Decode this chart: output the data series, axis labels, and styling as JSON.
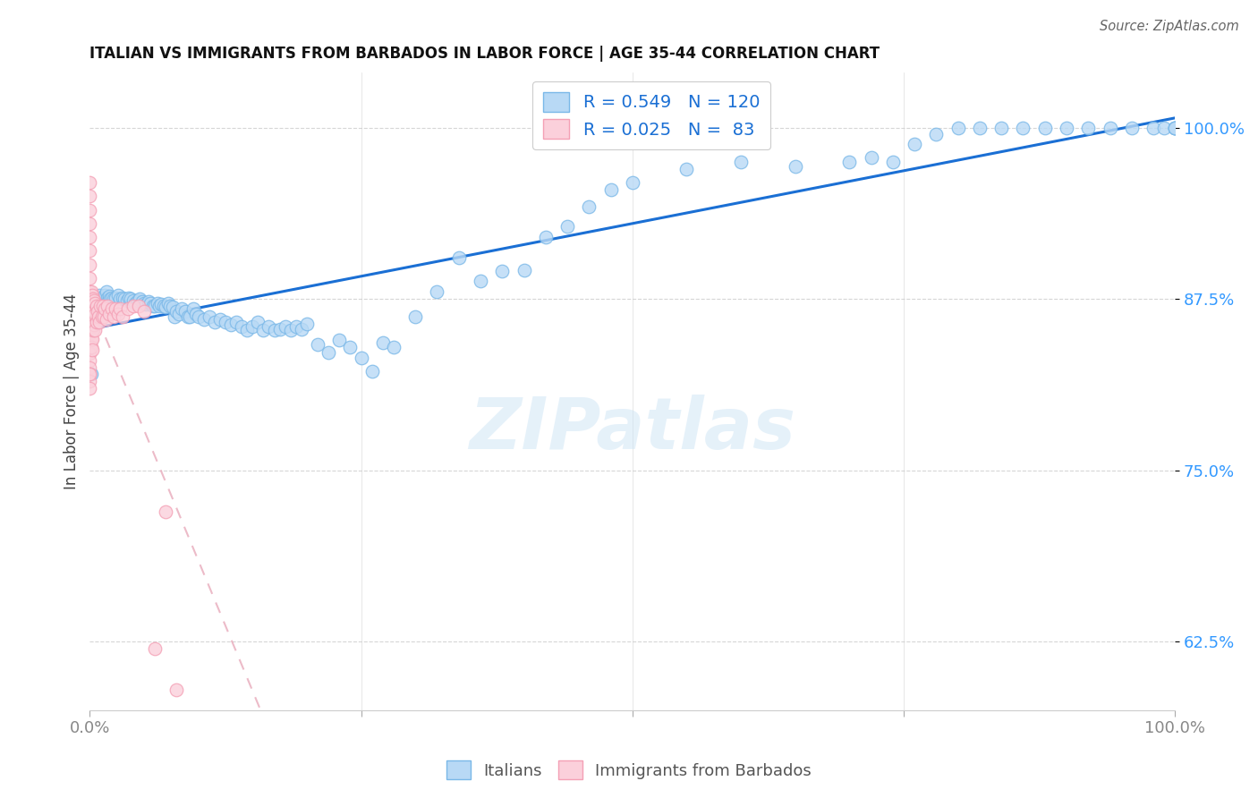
{
  "title": "ITALIAN VS IMMIGRANTS FROM BARBADOS IN LABOR FORCE | AGE 35-44 CORRELATION CHART",
  "source": "Source: ZipAtlas.com",
  "ylabel": "In Labor Force | Age 35-44",
  "xlim": [
    0.0,
    1.0
  ],
  "ylim": [
    0.575,
    1.04
  ],
  "yticks": [
    0.625,
    0.75,
    0.875,
    1.0
  ],
  "ytick_labels": [
    "62.5%",
    "75.0%",
    "87.5%",
    "100.0%"
  ],
  "xtick_labels": [
    "0.0%",
    "100.0%"
  ],
  "xticks": [
    0.0,
    1.0
  ],
  "background_color": "#ffffff",
  "grid_color": "#cccccc",
  "blue_edge": "#7ab8e8",
  "blue_fill": "#b8d9f5",
  "pink_edge": "#f4a0b5",
  "pink_fill": "#fbd0db",
  "line_blue": "#1a6fd4",
  "line_pink": "#e8aabb",
  "R_blue": 0.549,
  "N_blue": 120,
  "R_pink": 0.025,
  "N_pink": 83,
  "watermark": "ZIPatlas",
  "italians_x": [
    0.001,
    0.002,
    0.003,
    0.004,
    0.005,
    0.006,
    0.007,
    0.008,
    0.009,
    0.01,
    0.011,
    0.012,
    0.013,
    0.014,
    0.015,
    0.016,
    0.017,
    0.018,
    0.019,
    0.02,
    0.022,
    0.024,
    0.026,
    0.028,
    0.03,
    0.032,
    0.034,
    0.036,
    0.038,
    0.04,
    0.042,
    0.044,
    0.046,
    0.048,
    0.05,
    0.052,
    0.054,
    0.056,
    0.058,
    0.06,
    0.062,
    0.064,
    0.066,
    0.068,
    0.07,
    0.072,
    0.074,
    0.076,
    0.078,
    0.08,
    0.082,
    0.085,
    0.088,
    0.09,
    0.092,
    0.095,
    0.098,
    0.1,
    0.105,
    0.11,
    0.115,
    0.12,
    0.125,
    0.13,
    0.135,
    0.14,
    0.145,
    0.15,
    0.155,
    0.16,
    0.165,
    0.17,
    0.175,
    0.18,
    0.185,
    0.19,
    0.195,
    0.2,
    0.21,
    0.22,
    0.23,
    0.24,
    0.25,
    0.26,
    0.27,
    0.28,
    0.3,
    0.32,
    0.34,
    0.36,
    0.38,
    0.4,
    0.42,
    0.44,
    0.46,
    0.48,
    0.5,
    0.55,
    0.6,
    0.65,
    0.7,
    0.72,
    0.74,
    0.76,
    0.78,
    0.8,
    0.82,
    0.84,
    0.86,
    0.88,
    0.9,
    0.92,
    0.94,
    0.96,
    0.98,
    0.99,
    1.0,
    1.0,
    1.0,
    1.0
  ],
  "italians_y": [
    0.82,
    0.86,
    0.87,
    0.875,
    0.87,
    0.865,
    0.872,
    0.875,
    0.878,
    0.875,
    0.872,
    0.876,
    0.875,
    0.878,
    0.88,
    0.876,
    0.874,
    0.877,
    0.875,
    0.876,
    0.875,
    0.876,
    0.878,
    0.875,
    0.876,
    0.875,
    0.874,
    0.876,
    0.875,
    0.874,
    0.872,
    0.874,
    0.875,
    0.873,
    0.872,
    0.871,
    0.873,
    0.872,
    0.87,
    0.87,
    0.872,
    0.87,
    0.871,
    0.87,
    0.869,
    0.872,
    0.87,
    0.869,
    0.862,
    0.866,
    0.864,
    0.868,
    0.866,
    0.862,
    0.862,
    0.868,
    0.864,
    0.862,
    0.86,
    0.862,
    0.858,
    0.86,
    0.858,
    0.856,
    0.858,
    0.855,
    0.852,
    0.855,
    0.858,
    0.852,
    0.855,
    0.852,
    0.853,
    0.855,
    0.852,
    0.855,
    0.853,
    0.857,
    0.842,
    0.836,
    0.845,
    0.84,
    0.832,
    0.822,
    0.843,
    0.84,
    0.862,
    0.88,
    0.905,
    0.888,
    0.895,
    0.896,
    0.92,
    0.928,
    0.942,
    0.955,
    0.96,
    0.97,
    0.975,
    0.972,
    0.975,
    0.978,
    0.975,
    0.988,
    0.995,
    1.0,
    1.0,
    1.0,
    1.0,
    1.0,
    1.0,
    1.0,
    1.0,
    1.0,
    1.0,
    1.0,
    1.0,
    1.0,
    1.0,
    1.0
  ],
  "barbados_x": [
    0.0,
    0.0,
    0.0,
    0.0,
    0.0,
    0.0,
    0.0,
    0.0,
    0.0,
    0.0,
    0.0,
    0.0,
    0.0,
    0.0,
    0.0,
    0.0,
    0.0,
    0.0,
    0.0,
    0.0,
    0.0,
    0.0,
    0.0,
    0.0,
    0.0,
    0.0,
    0.0,
    0.0,
    0.0,
    0.0,
    0.001,
    0.001,
    0.001,
    0.001,
    0.001,
    0.001,
    0.001,
    0.001,
    0.001,
    0.001,
    0.002,
    0.002,
    0.002,
    0.002,
    0.002,
    0.002,
    0.002,
    0.003,
    0.003,
    0.003,
    0.003,
    0.004,
    0.004,
    0.004,
    0.005,
    0.005,
    0.005,
    0.006,
    0.006,
    0.007,
    0.008,
    0.009,
    0.01,
    0.011,
    0.012,
    0.013,
    0.014,
    0.015,
    0.016,
    0.018,
    0.02,
    0.022,
    0.024,
    0.026,
    0.028,
    0.03,
    0.035,
    0.04,
    0.045,
    0.05,
    0.06,
    0.07,
    0.08
  ],
  "barbados_y": [
    0.96,
    0.95,
    0.94,
    0.93,
    0.92,
    0.91,
    0.9,
    0.89,
    0.88,
    0.875,
    0.87,
    0.865,
    0.86,
    0.855,
    0.85,
    0.845,
    0.84,
    0.835,
    0.83,
    0.825,
    0.82,
    0.815,
    0.81,
    0.875,
    0.868,
    0.862,
    0.87,
    0.86,
    0.855,
    0.82,
    0.88,
    0.876,
    0.872,
    0.868,
    0.862,
    0.858,
    0.854,
    0.85,
    0.846,
    0.84,
    0.878,
    0.872,
    0.866,
    0.858,
    0.852,
    0.846,
    0.838,
    0.875,
    0.868,
    0.86,
    0.852,
    0.874,
    0.866,
    0.856,
    0.872,
    0.864,
    0.852,
    0.87,
    0.858,
    0.866,
    0.862,
    0.858,
    0.87,
    0.862,
    0.87,
    0.862,
    0.868,
    0.86,
    0.87,
    0.864,
    0.868,
    0.862,
    0.868,
    0.864,
    0.868,
    0.862,
    0.868,
    0.87,
    0.87,
    0.866,
    0.62,
    0.72,
    0.59
  ]
}
